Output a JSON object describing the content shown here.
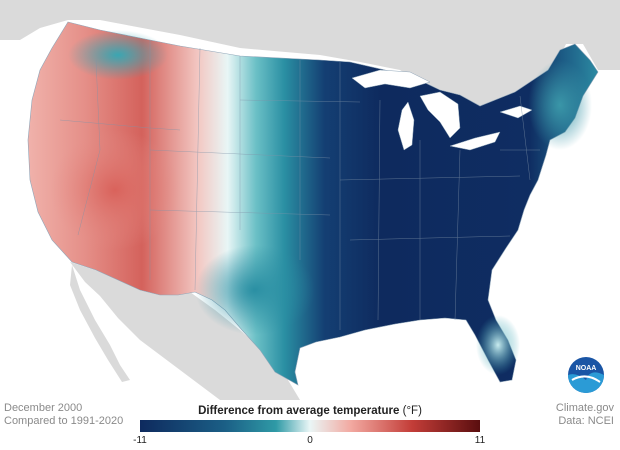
{
  "map": {
    "date": "December 2000",
    "baseline": "Compared to 1991-2020",
    "source": "Climate.gov",
    "data_credit": "Data: NCEI",
    "logo_text": "NOAA"
  },
  "legend": {
    "title": "Difference from average temperature",
    "unit": "(°F)",
    "min_label": "-11",
    "mid_label": "0",
    "max_label": "11",
    "min": -11,
    "max": 11,
    "colors": [
      "#0e2a5e",
      "#1b5f86",
      "#2f9aa6",
      "#eaf6f6",
      "#f2a9a1",
      "#c33d38",
      "#5a0e0f"
    ]
  },
  "colors": {
    "ocean": "#ffffff",
    "land_outside": "#dadada",
    "cold_deep": "#0e2a5e",
    "cold_teal": "#2f9aa6",
    "warm_red": "#e07a72"
  }
}
